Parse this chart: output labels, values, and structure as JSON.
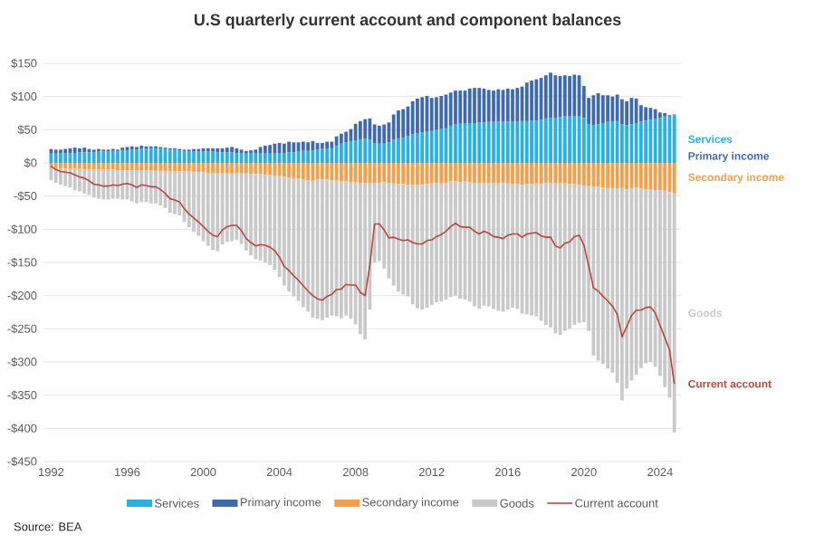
{
  "chart_data": {
    "type": "bar",
    "stacked": true,
    "title": "U.S quarterly current account and component balances",
    "x": [
      1992,
      1992.25,
      1992.5,
      1992.75,
      1993,
      1993.25,
      1993.5,
      1993.75,
      1994,
      1994.25,
      1994.5,
      1994.75,
      1995,
      1995.25,
      1995.5,
      1995.75,
      1996,
      1996.25,
      1996.5,
      1996.75,
      1997,
      1997.25,
      1997.5,
      1997.75,
      1998,
      1998.25,
      1998.5,
      1998.75,
      1999,
      1999.25,
      1999.5,
      1999.75,
      2000,
      2000.25,
      2000.5,
      2000.75,
      2001,
      2001.25,
      2001.5,
      2001.75,
      2002,
      2002.25,
      2002.5,
      2002.75,
      2003,
      2003.25,
      2003.5,
      2003.75,
      2004,
      2004.25,
      2004.5,
      2004.75,
      2005,
      2005.25,
      2005.5,
      2005.75,
      2006,
      2006.25,
      2006.5,
      2006.75,
      2007,
      2007.25,
      2007.5,
      2007.75,
      2008,
      2008.25,
      2008.5,
      2008.75,
      2009,
      2009.25,
      2009.5,
      2009.75,
      2010,
      2010.25,
      2010.5,
      2010.75,
      2011,
      2011.25,
      2011.5,
      2011.75,
      2012,
      2012.25,
      2012.5,
      2012.75,
      2013,
      2013.25,
      2013.5,
      2013.75,
      2014,
      2014.25,
      2014.5,
      2014.75,
      2015,
      2015.25,
      2015.5,
      2015.75,
      2016,
      2016.25,
      2016.5,
      2016.75,
      2017,
      2017.25,
      2017.5,
      2017.75,
      2018,
      2018.25,
      2018.5,
      2018.75,
      2019,
      2019.25,
      2019.5,
      2019.75,
      2020,
      2020.25,
      2020.5,
      2020.75,
      2021,
      2021.25,
      2021.5,
      2021.75,
      2022,
      2022.25,
      2022.5,
      2022.75,
      2023,
      2023.25,
      2023.5,
      2023.75,
      2024,
      2024.25,
      2024.5,
      2024.75
    ],
    "series": [
      {
        "name": "Services",
        "color": "#29b0e5",
        "values": [
          14,
          14,
          15,
          15,
          15,
          15,
          16,
          16,
          16,
          16,
          17,
          17,
          17,
          18,
          18,
          19,
          19,
          20,
          20,
          21,
          21,
          22,
          22,
          22,
          21,
          20,
          20,
          19,
          18,
          17,
          17,
          17,
          17,
          17,
          17,
          16,
          16,
          16,
          16,
          15,
          15,
          14,
          14,
          14,
          14,
          14,
          14,
          15,
          15,
          15,
          16,
          16,
          17,
          18,
          18,
          19,
          20,
          21,
          21,
          22,
          26,
          29,
          31,
          33,
          34,
          35,
          36,
          35,
          30,
          29,
          30,
          31,
          35,
          37,
          38,
          40,
          43,
          45,
          46,
          47,
          48,
          50,
          51,
          52,
          56,
          58,
          59,
          60,
          60,
          60,
          61,
          61,
          62,
          62,
          62,
          62,
          62,
          62,
          62,
          63,
          63,
          64,
          64,
          65,
          67,
          68,
          68,
          69,
          70,
          70,
          70,
          70,
          68,
          58,
          57,
          58,
          60,
          62,
          62,
          63,
          58,
          57,
          58,
          60,
          62,
          64,
          65,
          66,
          68,
          70,
          70,
          72
        ]
      },
      {
        "name": "Primary income",
        "color": "#3e6bb0",
        "values": [
          7,
          6,
          5,
          6,
          7,
          8,
          6,
          7,
          5,
          4,
          4,
          3,
          3,
          3,
          2,
          4,
          5,
          5,
          4,
          5,
          4,
          3,
          3,
          2,
          2,
          2,
          2,
          2,
          2,
          3,
          4,
          4,
          5,
          5,
          5,
          6,
          6,
          7,
          8,
          7,
          5,
          4,
          5,
          6,
          10,
          12,
          13,
          14,
          15,
          14,
          16,
          15,
          14,
          14,
          13,
          14,
          10,
          9,
          11,
          10,
          14,
          15,
          16,
          18,
          25,
          28,
          30,
          32,
          28,
          27,
          28,
          30,
          38,
          42,
          43,
          45,
          50,
          52,
          53,
          54,
          50,
          49,
          50,
          51,
          50,
          51,
          50,
          49,
          52,
          53,
          52,
          51,
          48,
          47,
          49,
          48,
          50,
          49,
          51,
          52,
          58,
          60,
          62,
          63,
          65,
          68,
          64,
          62,
          62,
          61,
          63,
          62,
          48,
          40,
          45,
          47,
          42,
          40,
          38,
          40,
          38,
          36,
          40,
          37,
          25,
          20,
          18,
          15,
          8,
          5,
          2,
          1
        ]
      },
      {
        "name": "Secondary income",
        "color": "#f4a04b",
        "values": [
          -8,
          -8,
          -9,
          -9,
          -9,
          -9,
          -9,
          -10,
          -10,
          -10,
          -10,
          -10,
          -10,
          -10,
          -11,
          -11,
          -11,
          -11,
          -11,
          -11,
          -11,
          -11,
          -12,
          -12,
          -12,
          -13,
          -13,
          -13,
          -13,
          -13,
          -14,
          -14,
          -14,
          -15,
          -15,
          -15,
          -15,
          -15,
          -16,
          -16,
          -16,
          -16,
          -17,
          -17,
          -17,
          -18,
          -18,
          -19,
          -20,
          -21,
          -22,
          -23,
          -24,
          -25,
          -26,
          -27,
          -25,
          -25,
          -25,
          -26,
          -27,
          -28,
          -28,
          -29,
          -29,
          -30,
          -30,
          -31,
          -30,
          -30,
          -29,
          -30,
          -31,
          -32,
          -32,
          -33,
          -33,
          -33,
          -33,
          -32,
          -30,
          -30,
          -31,
          -30,
          -28,
          -28,
          -29,
          -28,
          -29,
          -30,
          -30,
          -31,
          -30,
          -30,
          -31,
          -30,
          -31,
          -32,
          -32,
          -33,
          -32,
          -32,
          -31,
          -32,
          -30,
          -30,
          -31,
          -31,
          -31,
          -32,
          -32,
          -33,
          -34,
          -35,
          -36,
          -36,
          -37,
          -38,
          -38,
          -39,
          -38,
          -40,
          -38,
          -37,
          -39,
          -40,
          -40,
          -41,
          -41,
          -42,
          -44,
          -46
        ]
      },
      {
        "name": "Goods",
        "color": "#c9c9c9",
        "values": [
          -18,
          -22,
          -24,
          -26,
          -28,
          -32,
          -34,
          -36,
          -38,
          -42,
          -44,
          -45,
          -45,
          -44,
          -43,
          -44,
          -44,
          -47,
          -50,
          -48,
          -48,
          -50,
          -49,
          -52,
          -56,
          -62,
          -64,
          -66,
          -76,
          -84,
          -90,
          -96,
          -104,
          -110,
          -116,
          -118,
          -108,
          -104,
          -102,
          -100,
          -106,
          -116,
          -122,
          -128,
          -130,
          -132,
          -136,
          -142,
          -152,
          -164,
          -172,
          -178,
          -184,
          -192,
          -198,
          -206,
          -210,
          -212,
          -208,
          -204,
          -204,
          -206,
          -202,
          -206,
          -214,
          -228,
          -236,
          -190,
          -120,
          -118,
          -130,
          -144,
          -154,
          -162,
          -166,
          -168,
          -180,
          -186,
          -188,
          -186,
          -184,
          -180,
          -178,
          -176,
          -174,
          -172,
          -176,
          -178,
          -180,
          -186,
          -190,
          -184,
          -186,
          -190,
          -192,
          -194,
          -190,
          -186,
          -188,
          -194,
          -196,
          -198,
          -200,
          -206,
          -214,
          -218,
          -226,
          -228,
          -222,
          -218,
          -212,
          -208,
          -206,
          -218,
          -254,
          -262,
          -266,
          -272,
          -278,
          -292,
          -320,
          -300,
          -290,
          -282,
          -270,
          -262,
          -260,
          -266,
          -280,
          -296,
          -310,
          -360
        ]
      },
      {
        "name": "Current account",
        "type": "line",
        "color": "#b8463f",
        "values": [
          -5,
          -10,
          -13,
          -14,
          -15,
          -18,
          -21,
          -23,
          -27,
          -32,
          -33,
          -35,
          -35,
          -33,
          -34,
          -32,
          -31,
          -33,
          -37,
          -33,
          -34,
          -36,
          -36,
          -40,
          -46,
          -54,
          -56,
          -59,
          -69,
          -77,
          -83,
          -89,
          -96,
          -103,
          -109,
          -111,
          -101,
          -96,
          -94,
          -94,
          -102,
          -114,
          -120,
          -125,
          -123,
          -124,
          -127,
          -132,
          -142,
          -156,
          -162,
          -170,
          -177,
          -185,
          -193,
          -200,
          -205,
          -207,
          -201,
          -198,
          -191,
          -190,
          -183,
          -184,
          -184,
          -195,
          -200,
          -154,
          -92,
          -92,
          -101,
          -113,
          -112,
          -115,
          -117,
          -116,
          -120,
          -122,
          -122,
          -117,
          -116,
          -111,
          -108,
          -103,
          -96,
          -91,
          -96,
          -97,
          -97,
          -103,
          -107,
          -103,
          -106,
          -111,
          -112,
          -114,
          -109,
          -107,
          -107,
          -112,
          -107,
          -106,
          -105,
          -110,
          -112,
          -112,
          -125,
          -128,
          -121,
          -119,
          -111,
          -109,
          -124,
          -155,
          -188,
          -193,
          -201,
          -208,
          -216,
          -228,
          -262,
          -247,
          -230,
          -222,
          -222,
          -218,
          -217,
          -226,
          -245,
          -263,
          -282,
          -333
        ]
      }
    ],
    "xlim": [
      1991.6,
      2025.1
    ],
    "xticks": [
      1992,
      1996,
      2000,
      2004,
      2008,
      2012,
      2016,
      2020,
      2024
    ],
    "ylim": [
      -450,
      150
    ],
    "yticks": [
      {
        "value": -450,
        "label": "-$450"
      },
      {
        "value": -400,
        "label": "-$400"
      },
      {
        "value": -350,
        "label": "-$350"
      },
      {
        "value": -300,
        "label": "-$300"
      },
      {
        "value": -250,
        "label": "-$250"
      },
      {
        "value": -200,
        "label": "-$200"
      },
      {
        "value": -150,
        "label": "-$150"
      },
      {
        "value": -100,
        "label": "-$100"
      },
      {
        "value": -50,
        "label": "-$50"
      },
      {
        "value": 0,
        "label": "$0"
      },
      {
        "value": 50,
        "label": "$50"
      },
      {
        "value": 100,
        "label": "$100"
      },
      {
        "value": 150,
        "label": "$150"
      }
    ],
    "grid": "y",
    "legend": "bottom",
    "annotations": [
      "Source: BEA"
    ]
  }
}
